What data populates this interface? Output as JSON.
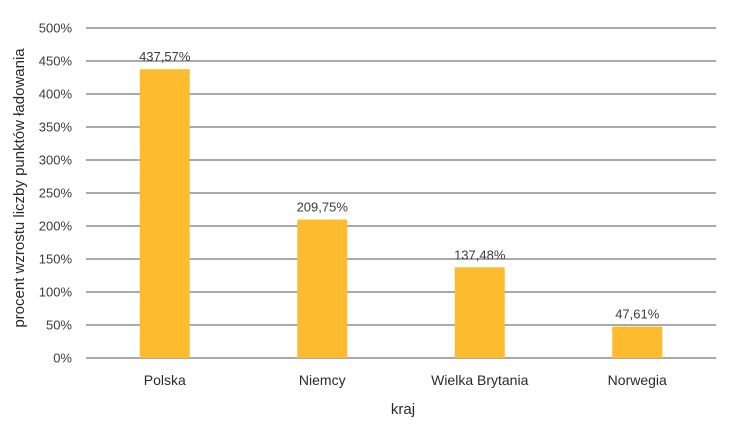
{
  "chart_data": {
    "type": "bar",
    "categories": [
      "Polska",
      "Niemcy",
      "Wielka Brytania",
      "Norwegia"
    ],
    "values": [
      437.57,
      209.75,
      137.48,
      47.61
    ],
    "data_labels": [
      "437,57%",
      "209,75%",
      "137,48%",
      "47,61%"
    ],
    "title": "",
    "xlabel": "kraj",
    "ylabel": "procent wzrostu liczby punktów ładowania",
    "ylim": [
      0,
      500
    ],
    "yticks": [
      0,
      50,
      100,
      150,
      200,
      250,
      300,
      350,
      400,
      450,
      500
    ],
    "ytick_labels": [
      "0%",
      "50%",
      "100%",
      "150%",
      "200%",
      "250%",
      "300%",
      "350%",
      "400%",
      "450%",
      "500%"
    ],
    "grid": true,
    "legend": "none",
    "bar_color": "#FDBB30",
    "grid_color": "#555555"
  }
}
